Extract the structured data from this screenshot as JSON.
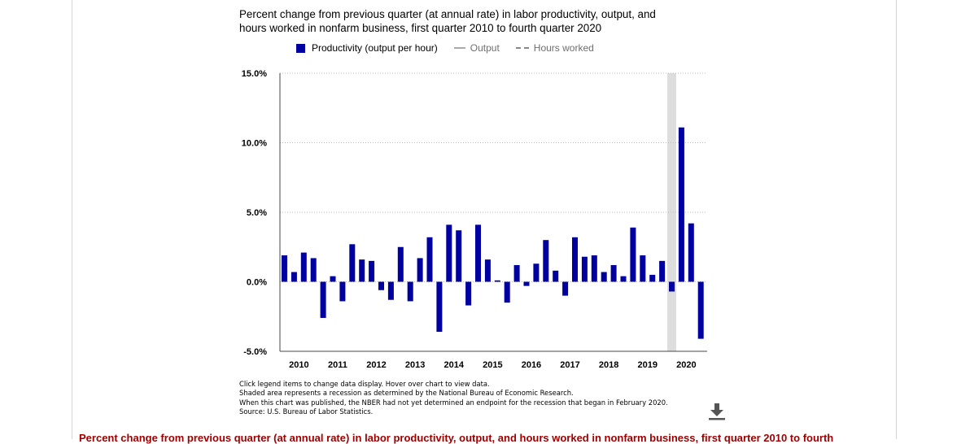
{
  "chart_data": {
    "type": "bar",
    "title_line1": "Percent change from previous quarter (at annual rate) in labor productivity, output, and",
    "title_line2": "hours worked in nonfarm business, first quarter 2010 to fourth quarter 2020",
    "legend": [
      {
        "label": "Productivity (output per hour)",
        "active": true,
        "color": "#0000a0"
      },
      {
        "label": "Output",
        "active": false,
        "color": "#aaaaaa"
      },
      {
        "label": "Hours worked",
        "active": false,
        "color": "#888888"
      }
    ],
    "y_ticks": [
      "15.0%",
      "10.0%",
      "5.0%",
      "0.0%",
      "-5.0%"
    ],
    "y_tick_values": [
      15,
      10,
      5,
      0,
      -5
    ],
    "ylim": [
      -5,
      15
    ],
    "x_tick_labels": [
      "2010",
      "2011",
      "2012",
      "2013",
      "2014",
      "2015",
      "2016",
      "2017",
      "2018",
      "2019",
      "2020"
    ],
    "recession_shading": {
      "from_index": 40,
      "to_index": 40
    },
    "series": [
      {
        "name": "Productivity (output per hour)",
        "color": "#0000a0",
        "x": [
          "2010 Q1",
          "2010 Q2",
          "2010 Q3",
          "2010 Q4",
          "2011 Q1",
          "2011 Q2",
          "2011 Q3",
          "2011 Q4",
          "2012 Q1",
          "2012 Q2",
          "2012 Q3",
          "2012 Q4",
          "2013 Q1",
          "2013 Q2",
          "2013 Q3",
          "2013 Q4",
          "2014 Q1",
          "2014 Q2",
          "2014 Q3",
          "2014 Q4",
          "2015 Q1",
          "2015 Q2",
          "2015 Q3",
          "2015 Q4",
          "2016 Q1",
          "2016 Q2",
          "2016 Q3",
          "2016 Q4",
          "2017 Q1",
          "2017 Q2",
          "2017 Q3",
          "2017 Q4",
          "2018 Q1",
          "2018 Q2",
          "2018 Q3",
          "2018 Q4",
          "2019 Q1",
          "2019 Q2",
          "2019 Q3",
          "2019 Q4",
          "2020 Q1",
          "2020 Q2",
          "2020 Q3",
          "2020 Q4"
        ],
        "values": [
          1.9,
          0.7,
          2.1,
          1.7,
          -2.6,
          0.4,
          -1.4,
          2.7,
          1.6,
          1.5,
          -0.6,
          -1.3,
          2.5,
          -1.4,
          1.7,
          3.2,
          -3.6,
          4.1,
          3.7,
          -1.7,
          4.1,
          1.6,
          0.1,
          -1.5,
          1.2,
          -0.3,
          1.3,
          3.0,
          0.8,
          -1.0,
          3.2,
          1.8,
          1.9,
          0.7,
          1.2,
          0.4,
          3.9,
          1.9,
          0.5,
          1.5,
          -0.7,
          11.1,
          4.2,
          -4.1
        ]
      }
    ]
  },
  "notes": [
    "Click legend items to change data display. Hover over chart to view data.",
    "Shaded area represents a recession as determined by the National Bureau of Economic Research.",
    "When this chart was published, the NBER had not yet determined an endpoint for the recession that began in February 2020.",
    "Source: U.S. Bureau of Labor Statistics."
  ],
  "download_icon": "download-icon",
  "bottom_caption": "Percent change from previous quarter (at annual rate) in labor productivity, output, and hours worked in nonfarm business, first quarter 2010 to fourth"
}
